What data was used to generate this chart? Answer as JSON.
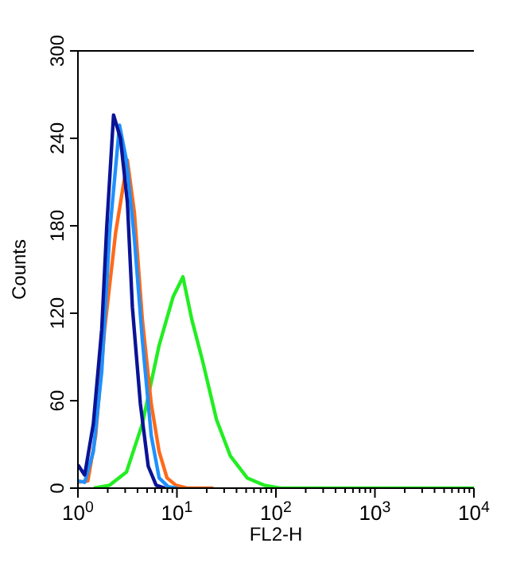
{
  "chart_data": {
    "type": "line",
    "xlabel": "FL2-H",
    "ylabel": "Counts",
    "log": "x",
    "xlim": [
      1,
      10000
    ],
    "ylim": [
      0,
      300
    ],
    "xticks": [
      {
        "value": 1,
        "label": "10$^{0}$"
      },
      {
        "value": 2,
        "label": null
      },
      {
        "value": 3,
        "label": null
      },
      {
        "value": 4,
        "label": null
      },
      {
        "value": 5,
        "label": null
      },
      {
        "value": 6,
        "label": null
      },
      {
        "value": 7,
        "label": null
      },
      {
        "value": 8,
        "label": null
      },
      {
        "value": 9,
        "label": null
      },
      {
        "value": 10,
        "label": "10$^{1}$"
      },
      {
        "value": 20,
        "label": null
      },
      {
        "value": 30,
        "label": null
      },
      {
        "value": 40,
        "label": null
      },
      {
        "value": 50,
        "label": null
      },
      {
        "value": 60,
        "label": null
      },
      {
        "value": 70,
        "label": null
      },
      {
        "value": 80,
        "label": null
      },
      {
        "value": 90,
        "label": null
      },
      {
        "value": 100,
        "label": "10$^{2}$"
      },
      {
        "value": 200,
        "label": null
      },
      {
        "value": 300,
        "label": null
      },
      {
        "value": 400,
        "label": null
      },
      {
        "value": 500,
        "label": null
      },
      {
        "value": 600,
        "label": null
      },
      {
        "value": 700,
        "label": null
      },
      {
        "value": 800,
        "label": null
      },
      {
        "value": 900,
        "label": null
      },
      {
        "value": 1000,
        "label": "10$^{3}$"
      },
      {
        "value": 2000,
        "label": null
      },
      {
        "value": 3000,
        "label": null
      },
      {
        "value": 4000,
        "label": null
      },
      {
        "value": 5000,
        "label": null
      },
      {
        "value": 6000,
        "label": null
      },
      {
        "value": 7000,
        "label": null
      },
      {
        "value": 8000,
        "label": null
      },
      {
        "value": 9000,
        "label": null
      },
      {
        "value": 10000,
        "label": "10$^{4}$"
      }
    ],
    "yticks": [
      0,
      60,
      120,
      180,
      240,
      300
    ],
    "grid": false,
    "marker": "none",
    "line_style": "solid",
    "series": [
      {
        "color": "#22ee22",
        "x": [
          1.45,
          2.09,
          3.09,
          4.47,
          6.61,
          9.12,
          11.5,
          14.1,
          18.2,
          25.1,
          34.7,
          51.3,
          75.9,
          110,
          10000
        ],
        "values": [
          0,
          2,
          11,
          44,
          98,
          131,
          145,
          116,
          87,
          47,
          22,
          7,
          2,
          0,
          0
        ]
      },
      {
        "color": "#ff6a1a",
        "x": [
          1,
          1.26,
          1.51,
          1.86,
          2.4,
          3.16,
          3.72,
          4.47,
          5.5,
          6.61,
          7.94,
          9.77,
          12.6,
          23.4
        ],
        "values": [
          4,
          5,
          36,
          109,
          175,
          225,
          189,
          116,
          58,
          25,
          7,
          2,
          0,
          0
        ]
      },
      {
        "color": "#1e90ff",
        "x": [
          1,
          1.17,
          1.43,
          1.74,
          2.09,
          2.63,
          3.09,
          3.72,
          4.47,
          5.5,
          6.61,
          8.13,
          10
        ],
        "values": [
          5,
          4,
          25,
          80,
          175,
          249,
          225,
          171,
          102,
          36,
          7,
          1,
          0
        ]
      },
      {
        "color": "#0a1496",
        "x": [
          1,
          1.17,
          1.43,
          1.74,
          1.95,
          2.29,
          2.69,
          3.16,
          3.55,
          4.27,
          5.13,
          6.17,
          7.59
        ],
        "values": [
          16,
          9,
          44,
          109,
          178,
          256,
          240,
          196,
          124,
          58,
          15,
          2,
          0
        ]
      }
    ]
  }
}
